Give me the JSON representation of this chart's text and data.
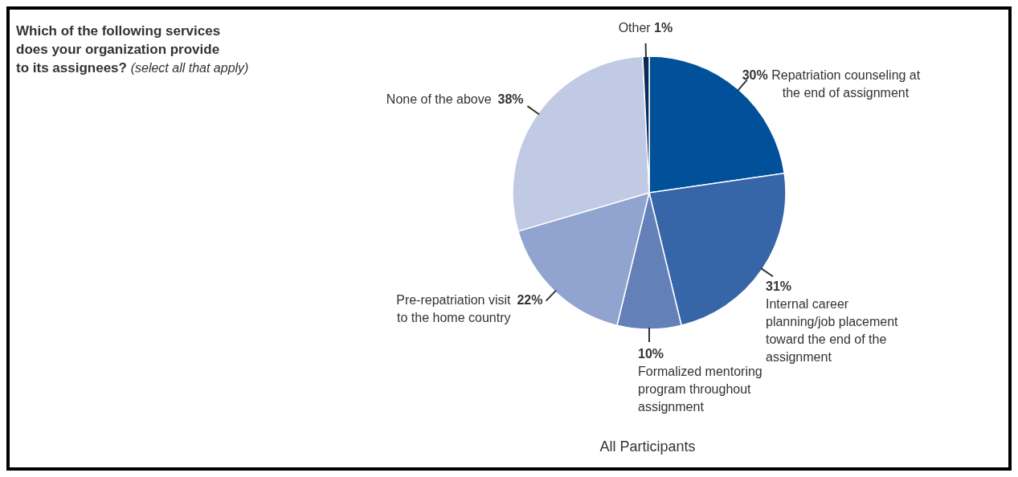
{
  "chart_data": {
    "type": "pie",
    "title": "Which of the following services does your organization provide to its assignees?",
    "subtitle": "(select all that apply)",
    "categories": [
      "Repatriation counseling at the end of assignment",
      "Internal career planning/job placement toward the end of the assignment",
      "Formalized mentoring program throughout assignment",
      "Pre-repatriation visit to the home country",
      "None of the above",
      "Other"
    ],
    "values": [
      30,
      31,
      10,
      22,
      38,
      1
    ],
    "colors": [
      "#00509a",
      "#3666a8",
      "#6480b8",
      "#90a4cf",
      "#c0cae4",
      "#0a2b5a"
    ],
    "value_labels": [
      "30%",
      "31%",
      "10%",
      "22%",
      "38%",
      "1%"
    ],
    "annotations": [
      "All Participants"
    ]
  }
}
